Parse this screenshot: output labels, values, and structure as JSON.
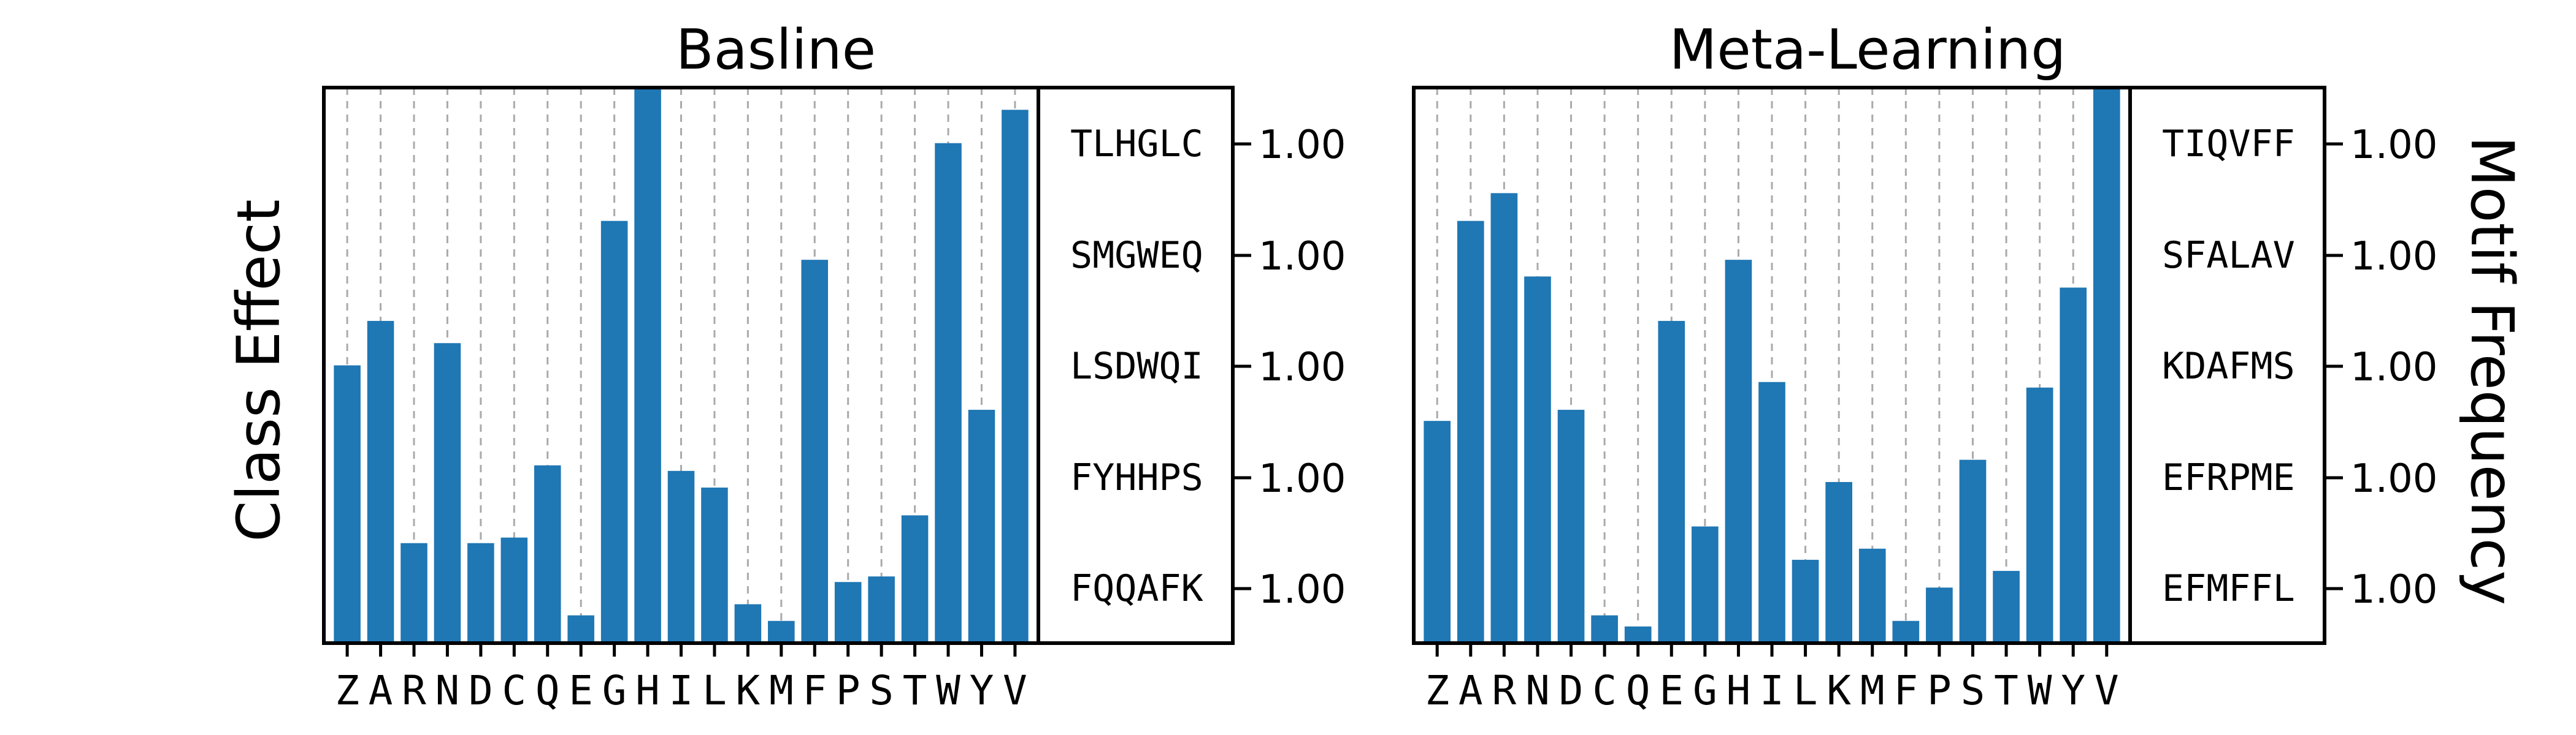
{
  "chart_data": {
    "type": "bar",
    "categories": [
      "Z",
      "A",
      "R",
      "N",
      "D",
      "C",
      "Q",
      "E",
      "G",
      "H",
      "I",
      "L",
      "K",
      "M",
      "F",
      "P",
      "S",
      "T",
      "W",
      "Y",
      "V"
    ],
    "ylabel": "Class Effect",
    "right_ylabel": "Motif Frequency",
    "bar_color": "#1f77b4",
    "grid_x": true,
    "panels": [
      {
        "title": "Basline",
        "values": [
          0.5,
          0.58,
          0.18,
          0.54,
          0.18,
          0.19,
          0.32,
          0.05,
          0.76,
          1.0,
          0.31,
          0.28,
          0.07,
          0.04,
          0.69,
          0.11,
          0.12,
          0.23,
          0.9,
          0.42,
          0.96
        ],
        "motifs": [
          "TLHGLC",
          "SMGWEQ",
          "LSDWQI",
          "FYHHPS",
          "FQQAFK"
        ],
        "motif_values": [
          "1.00",
          "1.00",
          "1.00",
          "1.00",
          "1.00"
        ]
      },
      {
        "title": "Meta-Learning",
        "values": [
          0.4,
          0.76,
          0.81,
          0.66,
          0.42,
          0.05,
          0.03,
          0.58,
          0.21,
          0.69,
          0.47,
          0.15,
          0.29,
          0.17,
          0.04,
          0.1,
          0.33,
          0.13,
          0.46,
          0.64,
          1.0
        ],
        "motifs": [
          "TIQVFF",
          "SFALAV",
          "KDAFMS",
          "EFRPME",
          "EFMFFL"
        ],
        "motif_values": [
          "1.00",
          "1.00",
          "1.00",
          "1.00",
          "1.00"
        ]
      }
    ]
  }
}
